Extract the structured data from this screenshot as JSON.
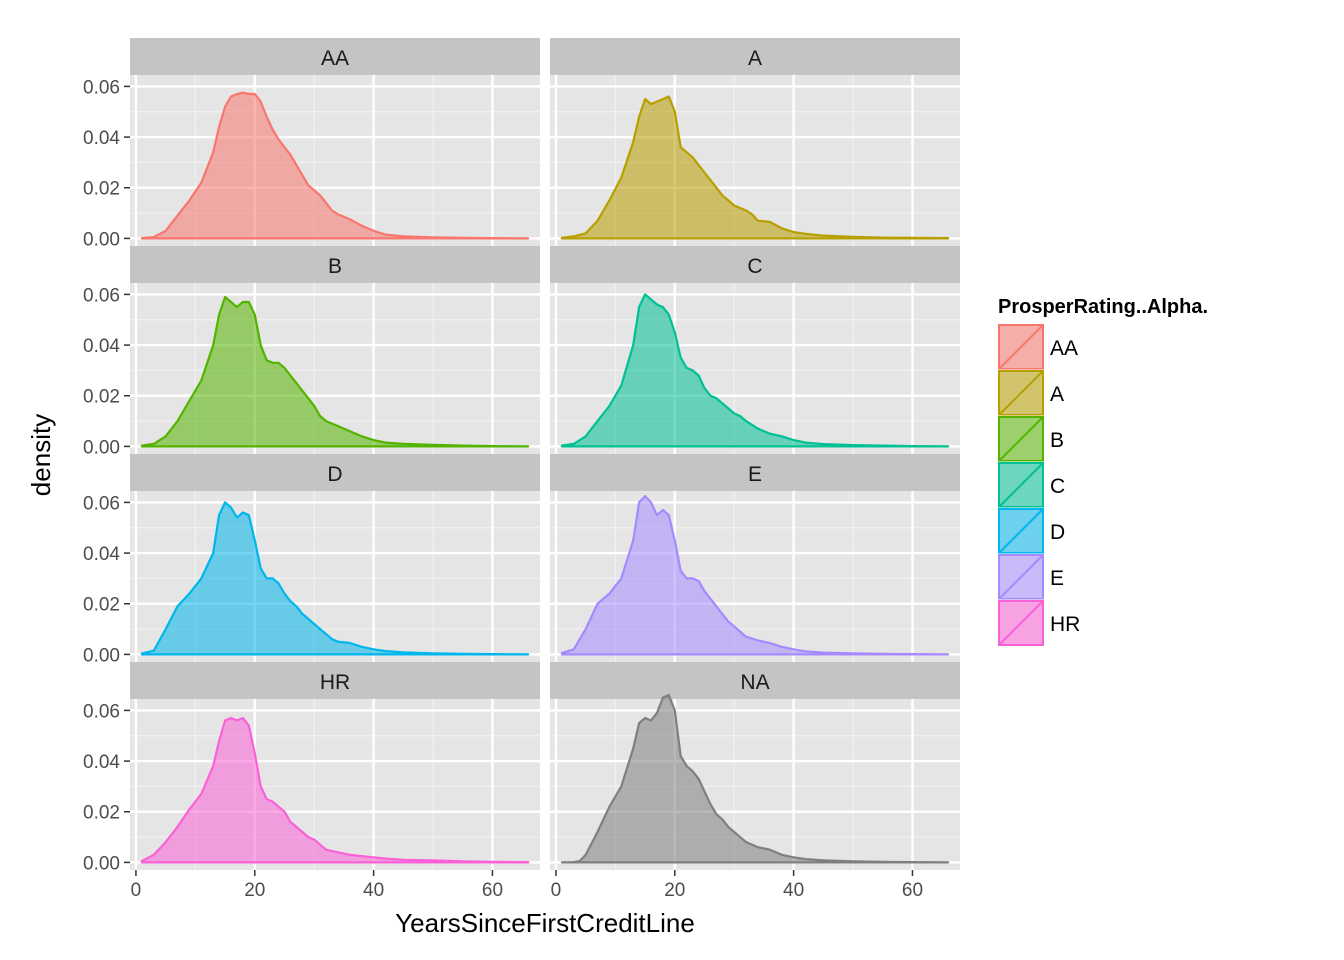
{
  "chart_data": {
    "type": "area",
    "subtype": "faceted-density",
    "xlabel": "YearsSinceFirstCreditLine",
    "ylabel": "density",
    "xlim": [
      -1,
      68
    ],
    "ylim": [
      -0.003,
      0.0645
    ],
    "x_ticks": [
      0,
      20,
      40,
      60
    ],
    "x_minor_ticks": [
      10,
      30,
      50
    ],
    "y_ticks": [
      0.0,
      0.02,
      0.04,
      0.06
    ],
    "y_tick_labels": [
      "0.00",
      "0.02",
      "0.04",
      "0.06"
    ],
    "y_minor_ticks": [
      0.01,
      0.03,
      0.05
    ],
    "facet_columns": 2,
    "legend": {
      "title": "ProsperRating..Alpha.",
      "position": "right",
      "entries": [
        "AA",
        "A",
        "B",
        "C",
        "D",
        "E",
        "HR"
      ]
    },
    "colors": {
      "panel_background": "#E5E5E5",
      "strip_background": "#C4C4C4",
      "grid_major": "#FFFFFF",
      "grid_minor": "#F1F1F1"
    },
    "panels": [
      {
        "label": "AA",
        "color": "#F8766D",
        "points": [
          [
            1,
            0.0001
          ],
          [
            3,
            0.0005
          ],
          [
            5,
            0.003
          ],
          [
            7,
            0.009
          ],
          [
            9,
            0.015
          ],
          [
            11,
            0.022
          ],
          [
            13,
            0.034
          ],
          [
            14,
            0.044
          ],
          [
            15,
            0.052
          ],
          [
            16,
            0.056
          ],
          [
            17,
            0.057
          ],
          [
            18,
            0.0575
          ],
          [
            19,
            0.057
          ],
          [
            20,
            0.057
          ],
          [
            21,
            0.054
          ],
          [
            22,
            0.048
          ],
          [
            23,
            0.043
          ],
          [
            24,
            0.039
          ],
          [
            25,
            0.036
          ],
          [
            26,
            0.033
          ],
          [
            27,
            0.029
          ],
          [
            28,
            0.025
          ],
          [
            29,
            0.021
          ],
          [
            30,
            0.019
          ],
          [
            31,
            0.017
          ],
          [
            32,
            0.014
          ],
          [
            33,
            0.011
          ],
          [
            34,
            0.0095
          ],
          [
            36,
            0.0075
          ],
          [
            38,
            0.005
          ],
          [
            40,
            0.003
          ],
          [
            42,
            0.0015
          ],
          [
            45,
            0.0008
          ],
          [
            50,
            0.0004
          ],
          [
            55,
            0.0002
          ],
          [
            60,
            0.0001
          ],
          [
            66,
            0.0
          ]
        ]
      },
      {
        "label": "A",
        "color": "#B79F00",
        "points": [
          [
            1,
            0.0002
          ],
          [
            3,
            0.0008
          ],
          [
            5,
            0.002
          ],
          [
            7,
            0.007
          ],
          [
            9,
            0.015
          ],
          [
            11,
            0.024
          ],
          [
            13,
            0.038
          ],
          [
            14,
            0.048
          ],
          [
            15,
            0.055
          ],
          [
            16,
            0.053
          ],
          [
            17,
            0.054
          ],
          [
            18,
            0.055
          ],
          [
            19,
            0.056
          ],
          [
            20,
            0.05
          ],
          [
            21,
            0.036
          ],
          [
            22,
            0.034
          ],
          [
            23,
            0.032
          ],
          [
            24,
            0.029
          ],
          [
            25,
            0.026
          ],
          [
            26,
            0.023
          ],
          [
            27,
            0.02
          ],
          [
            28,
            0.017
          ],
          [
            29,
            0.015
          ],
          [
            30,
            0.013
          ],
          [
            31,
            0.012
          ],
          [
            32,
            0.011
          ],
          [
            33,
            0.0095
          ],
          [
            34,
            0.007
          ],
          [
            36,
            0.0065
          ],
          [
            38,
            0.004
          ],
          [
            40,
            0.0025
          ],
          [
            42,
            0.0018
          ],
          [
            45,
            0.0011
          ],
          [
            50,
            0.0006
          ],
          [
            55,
            0.0003
          ],
          [
            60,
            0.0002
          ],
          [
            66,
            0.0001
          ]
        ]
      },
      {
        "label": "B",
        "color": "#53B400",
        "points": [
          [
            1,
            0.0003
          ],
          [
            3,
            0.001
          ],
          [
            5,
            0.004
          ],
          [
            7,
            0.01
          ],
          [
            9,
            0.018
          ],
          [
            11,
            0.026
          ],
          [
            13,
            0.04
          ],
          [
            14,
            0.052
          ],
          [
            15,
            0.059
          ],
          [
            16,
            0.057
          ],
          [
            17,
            0.055
          ],
          [
            18,
            0.057
          ],
          [
            19,
            0.057
          ],
          [
            20,
            0.052
          ],
          [
            21,
            0.04
          ],
          [
            22,
            0.034
          ],
          [
            23,
            0.033
          ],
          [
            24,
            0.033
          ],
          [
            25,
            0.031
          ],
          [
            26,
            0.028
          ],
          [
            27,
            0.025
          ],
          [
            28,
            0.022
          ],
          [
            29,
            0.019
          ],
          [
            30,
            0.016
          ],
          [
            31,
            0.012
          ],
          [
            32,
            0.01
          ],
          [
            34,
            0.008
          ],
          [
            36,
            0.006
          ],
          [
            38,
            0.004
          ],
          [
            40,
            0.0025
          ],
          [
            42,
            0.0015
          ],
          [
            45,
            0.001
          ],
          [
            50,
            0.0006
          ],
          [
            55,
            0.0003
          ],
          [
            60,
            0.0001
          ],
          [
            66,
            0.0
          ]
        ]
      },
      {
        "label": "C",
        "color": "#00C094",
        "points": [
          [
            1,
            0.0003
          ],
          [
            3,
            0.001
          ],
          [
            5,
            0.004
          ],
          [
            7,
            0.01
          ],
          [
            9,
            0.016
          ],
          [
            11,
            0.024
          ],
          [
            13,
            0.04
          ],
          [
            14,
            0.055
          ],
          [
            15,
            0.06
          ],
          [
            16,
            0.058
          ],
          [
            17,
            0.056
          ],
          [
            18,
            0.055
          ],
          [
            19,
            0.052
          ],
          [
            20,
            0.045
          ],
          [
            21,
            0.035
          ],
          [
            22,
            0.031
          ],
          [
            23,
            0.03
          ],
          [
            24,
            0.028
          ],
          [
            25,
            0.023
          ],
          [
            26,
            0.02
          ],
          [
            27,
            0.019
          ],
          [
            28,
            0.017
          ],
          [
            29,
            0.015
          ],
          [
            30,
            0.013
          ],
          [
            31,
            0.012
          ],
          [
            32,
            0.01
          ],
          [
            34,
            0.007
          ],
          [
            36,
            0.005
          ],
          [
            38,
            0.004
          ],
          [
            40,
            0.0025
          ],
          [
            42,
            0.0015
          ],
          [
            45,
            0.0009
          ],
          [
            50,
            0.0005
          ],
          [
            55,
            0.0003
          ],
          [
            60,
            0.0001
          ],
          [
            66,
            0.0
          ]
        ]
      },
      {
        "label": "D",
        "color": "#00B6EB",
        "points": [
          [
            1,
            0.0003
          ],
          [
            3,
            0.0015
          ],
          [
            5,
            0.01
          ],
          [
            7,
            0.019
          ],
          [
            9,
            0.024
          ],
          [
            11,
            0.03
          ],
          [
            13,
            0.04
          ],
          [
            14,
            0.055
          ],
          [
            15,
            0.06
          ],
          [
            16,
            0.058
          ],
          [
            17,
            0.054
          ],
          [
            18,
            0.056
          ],
          [
            19,
            0.055
          ],
          [
            20,
            0.045
          ],
          [
            21,
            0.034
          ],
          [
            22,
            0.03
          ],
          [
            23,
            0.03
          ],
          [
            24,
            0.028
          ],
          [
            25,
            0.024
          ],
          [
            26,
            0.021
          ],
          [
            27,
            0.019
          ],
          [
            28,
            0.016
          ],
          [
            29,
            0.014
          ],
          [
            30,
            0.012
          ],
          [
            31,
            0.01
          ],
          [
            32,
            0.008
          ],
          [
            33,
            0.006
          ],
          [
            34,
            0.005
          ],
          [
            36,
            0.0045
          ],
          [
            38,
            0.003
          ],
          [
            40,
            0.002
          ],
          [
            42,
            0.0013
          ],
          [
            45,
            0.0008
          ],
          [
            50,
            0.0004
          ],
          [
            55,
            0.0002
          ],
          [
            60,
            0.0001
          ],
          [
            66,
            0.0
          ]
        ]
      },
      {
        "label": "E",
        "color": "#A58AFF",
        "points": [
          [
            1,
            0.0005
          ],
          [
            3,
            0.002
          ],
          [
            5,
            0.01
          ],
          [
            7,
            0.02
          ],
          [
            9,
            0.024
          ],
          [
            11,
            0.03
          ],
          [
            13,
            0.045
          ],
          [
            14,
            0.06
          ],
          [
            15,
            0.0625
          ],
          [
            16,
            0.06
          ],
          [
            17,
            0.055
          ],
          [
            18,
            0.057
          ],
          [
            19,
            0.055
          ],
          [
            20,
            0.045
          ],
          [
            21,
            0.033
          ],
          [
            22,
            0.03
          ],
          [
            23,
            0.03
          ],
          [
            24,
            0.029
          ],
          [
            25,
            0.025
          ],
          [
            26,
            0.022
          ],
          [
            27,
            0.019
          ],
          [
            28,
            0.016
          ],
          [
            29,
            0.013
          ],
          [
            30,
            0.011
          ],
          [
            31,
            0.009
          ],
          [
            32,
            0.007
          ],
          [
            34,
            0.0055
          ],
          [
            36,
            0.0045
          ],
          [
            38,
            0.003
          ],
          [
            40,
            0.002
          ],
          [
            42,
            0.0012
          ],
          [
            45,
            0.0007
          ],
          [
            50,
            0.0004
          ],
          [
            55,
            0.0002
          ],
          [
            60,
            0.0001
          ],
          [
            66,
            0.0
          ]
        ]
      },
      {
        "label": "HR",
        "color": "#FB61D7",
        "points": [
          [
            1,
            0.0005
          ],
          [
            3,
            0.003
          ],
          [
            5,
            0.008
          ],
          [
            7,
            0.014
          ],
          [
            9,
            0.021
          ],
          [
            11,
            0.027
          ],
          [
            13,
            0.038
          ],
          [
            14,
            0.048
          ],
          [
            15,
            0.056
          ],
          [
            16,
            0.057
          ],
          [
            17,
            0.056
          ],
          [
            18,
            0.057
          ],
          [
            19,
            0.054
          ],
          [
            20,
            0.043
          ],
          [
            21,
            0.03
          ],
          [
            22,
            0.025
          ],
          [
            23,
            0.024
          ],
          [
            24,
            0.022
          ],
          [
            25,
            0.02
          ],
          [
            26,
            0.016
          ],
          [
            27,
            0.014
          ],
          [
            28,
            0.012
          ],
          [
            29,
            0.01
          ],
          [
            30,
            0.009
          ],
          [
            31,
            0.007
          ],
          [
            32,
            0.005
          ],
          [
            34,
            0.004
          ],
          [
            36,
            0.003
          ],
          [
            38,
            0.0025
          ],
          [
            40,
            0.002
          ],
          [
            42,
            0.0015
          ],
          [
            45,
            0.001
          ],
          [
            50,
            0.0008
          ],
          [
            55,
            0.0004
          ],
          [
            60,
            0.0002
          ],
          [
            66,
            0.0001
          ]
        ]
      },
      {
        "label": "NA",
        "color": "#7F7F7F",
        "points": [
          [
            1,
            0.0
          ],
          [
            3,
            0.0001
          ],
          [
            4,
            0.0005
          ],
          [
            5,
            0.003
          ],
          [
            7,
            0.012
          ],
          [
            9,
            0.022
          ],
          [
            11,
            0.03
          ],
          [
            13,
            0.045
          ],
          [
            14,
            0.055
          ],
          [
            15,
            0.057
          ],
          [
            16,
            0.056
          ],
          [
            17,
            0.059
          ],
          [
            18,
            0.065
          ],
          [
            19,
            0.066
          ],
          [
            20,
            0.06
          ],
          [
            21,
            0.042
          ],
          [
            22,
            0.038
          ],
          [
            23,
            0.036
          ],
          [
            24,
            0.033
          ],
          [
            25,
            0.028
          ],
          [
            26,
            0.023
          ],
          [
            27,
            0.019
          ],
          [
            28,
            0.017
          ],
          [
            29,
            0.014
          ],
          [
            30,
            0.012
          ],
          [
            31,
            0.01
          ],
          [
            32,
            0.008
          ],
          [
            34,
            0.006
          ],
          [
            36,
            0.005
          ],
          [
            38,
            0.003
          ],
          [
            40,
            0.002
          ],
          [
            42,
            0.0013
          ],
          [
            45,
            0.0008
          ],
          [
            50,
            0.0004
          ],
          [
            55,
            0.0002
          ],
          [
            60,
            0.0001
          ],
          [
            66,
            0.0
          ]
        ]
      }
    ]
  }
}
